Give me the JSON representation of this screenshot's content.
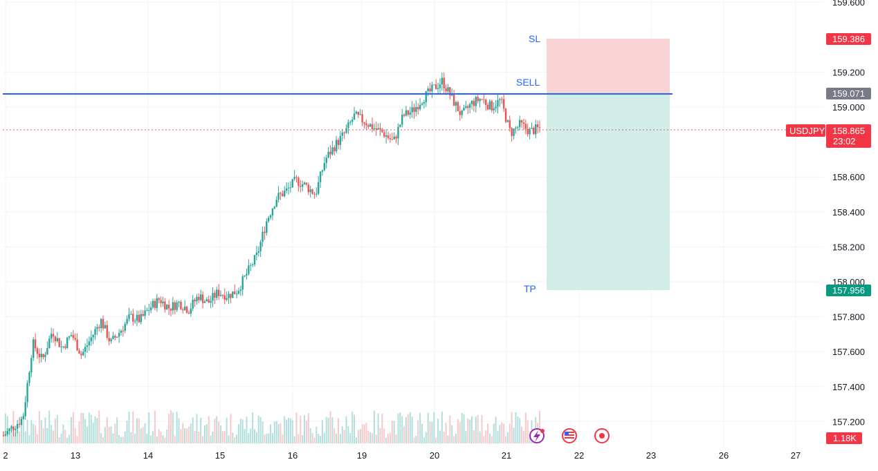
{
  "chart_data": {
    "type": "candlestick",
    "symbol": "USDJPY",
    "last_price": "158.865",
    "countdown": "23:02",
    "volume_label": "1.18K",
    "y_axis": {
      "ylim": [
        156.95,
        159.62
      ],
      "ticks": [
        "159.600",
        "159.200",
        "159.000",
        "158.600",
        "158.400",
        "158.200",
        "158.000",
        "157.800",
        "157.600",
        "157.400",
        "157.200"
      ]
    },
    "x_axis": {
      "ticks": [
        "2",
        "13",
        "14",
        "15",
        "16",
        "19",
        "20",
        "21",
        "22",
        "23",
        "26",
        "27"
      ]
    },
    "position": {
      "side": "short",
      "entry_label": "SELL",
      "entry": "159.071",
      "stop_label": "SL",
      "stop": "159.386",
      "target_label": "TP",
      "target": "157.956"
    },
    "trend": [
      [
        0,
        157.12
      ],
      [
        2,
        157.22
      ],
      [
        3,
        157.65
      ],
      [
        4,
        157.55
      ],
      [
        5,
        157.72
      ],
      [
        6,
        157.62
      ],
      [
        7,
        157.7
      ],
      [
        8,
        157.58
      ],
      [
        9,
        157.68
      ],
      [
        10,
        157.78
      ],
      [
        11,
        157.65
      ],
      [
        12,
        157.72
      ],
      [
        13,
        157.8
      ],
      [
        14,
        157.78
      ],
      [
        15,
        157.85
      ],
      [
        16,
        157.9
      ],
      [
        17,
        157.85
      ],
      [
        18,
        157.88
      ],
      [
        19,
        157.84
      ],
      [
        20,
        157.92
      ],
      [
        21,
        157.88
      ],
      [
        22,
        157.94
      ],
      [
        23,
        157.92
      ],
      [
        24,
        157.95
      ],
      [
        25,
        158.05
      ],
      [
        26,
        158.15
      ],
      [
        27,
        158.35
      ],
      [
        28,
        158.48
      ],
      [
        29,
        158.52
      ],
      [
        30,
        158.58
      ],
      [
        31,
        158.55
      ],
      [
        32,
        158.5
      ],
      [
        33,
        158.7
      ],
      [
        34,
        158.78
      ],
      [
        35,
        158.85
      ],
      [
        36,
        158.95
      ],
      [
        37,
        158.92
      ],
      [
        38,
        158.88
      ],
      [
        39,
        158.85
      ],
      [
        40,
        158.8
      ],
      [
        41,
        158.95
      ],
      [
        42,
        158.98
      ],
      [
        43,
        159.05
      ],
      [
        44,
        159.1
      ],
      [
        45,
        159.15
      ],
      [
        46,
        159.05
      ],
      [
        47,
        158.95
      ],
      [
        48,
        159.02
      ],
      [
        49,
        159.05
      ],
      [
        50,
        159.0
      ],
      [
        51,
        159.04
      ],
      [
        52,
        158.85
      ],
      [
        53,
        158.9
      ],
      [
        54,
        158.86
      ],
      [
        55,
        158.88
      ]
    ],
    "up_color": "#26a69a",
    "down_color": "#ef5350",
    "entry_line_color": "#2962ff",
    "stop_zone_color": "#f8d4d6",
    "target_zone_color": "#d2ede8",
    "stop_tag_color": "#f23645",
    "entry_tag_color": "#787b86",
    "target_tag_color": "#089981",
    "price_tag_color": "#f23645"
  },
  "icons": [
    "lightning-icon",
    "us-flag-icon",
    "record-icon"
  ]
}
